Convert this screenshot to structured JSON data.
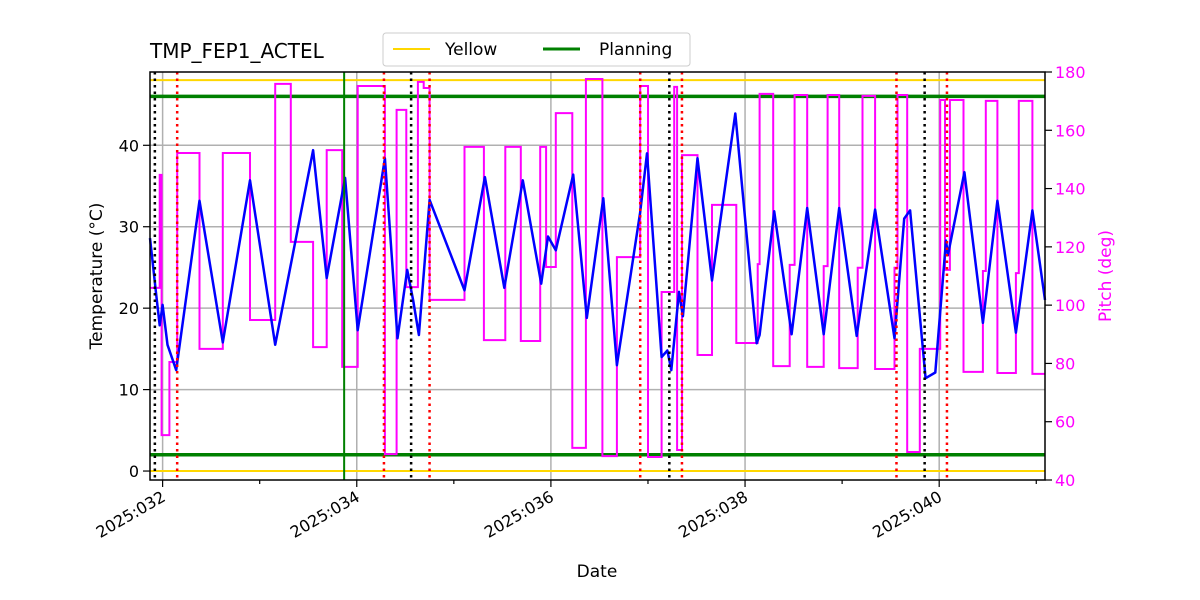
{
  "chart_data": {
    "type": "line",
    "title": "TMP_FEP1_ACTEL",
    "xlabel": "Date",
    "ylabel": "Temperature ($^\\circ$C)",
    "ylabel_display": "Temperature (°C)",
    "y2label": "Pitch (deg)",
    "xlim": [
      31.87,
      41.09
    ],
    "ylim": [
      -1.1,
      49
    ],
    "y2lim": [
      40,
      180
    ],
    "xticks": [
      {
        "value": 32,
        "label": "2025:032"
      },
      {
        "value": 34,
        "label": "2025:034"
      },
      {
        "value": 36,
        "label": "2025:036"
      },
      {
        "value": 38,
        "label": "2025:038"
      },
      {
        "value": 40,
        "label": "2025:040"
      }
    ],
    "yticks": [
      0,
      10,
      20,
      30,
      40
    ],
    "y2ticks": [
      40,
      60,
      80,
      100,
      120,
      140,
      160,
      180
    ],
    "grid": true,
    "legend": {
      "placement": "top-center, above axes",
      "entries": [
        {
          "name": "Yellow",
          "color": "#ffd700"
        },
        {
          "name": "Planning",
          "color": "#008000"
        }
      ]
    },
    "colors": {
      "temperature": "#0000ff",
      "pitch": "#ff00ff",
      "yellow": "#ffd700",
      "planning": "#008000",
      "red_marker": "#ff0000",
      "black_marker": "#000000"
    },
    "limits": {
      "yellow": [
        48,
        0
      ],
      "planning": [
        46,
        2
      ]
    },
    "vlines": {
      "black_dotted": [
        31.92,
        34.56,
        37.22,
        39.85
      ],
      "red_dotted": [
        32.15,
        34.28,
        34.75,
        36.92,
        37.35,
        39.56,
        40.08
      ],
      "green_solid": [
        33.87
      ]
    },
    "series": [
      {
        "axis": "left",
        "color": "#0000ff",
        "points": [
          [
            31.87,
            28.6
          ],
          [
            31.94,
            21
          ],
          [
            31.97,
            17.9
          ],
          [
            32.0,
            20.4
          ],
          [
            32.05,
            15.5
          ],
          [
            32.14,
            12.4
          ],
          [
            32.38,
            33.2
          ],
          [
            32.62,
            15.8
          ],
          [
            32.9,
            35.7
          ],
          [
            33.16,
            15.5
          ],
          [
            33.55,
            39.4
          ],
          [
            33.69,
            23.7
          ],
          [
            33.88,
            36
          ],
          [
            34.01,
            17.3
          ],
          [
            34.29,
            38.4
          ],
          [
            34.42,
            16.3
          ],
          [
            34.52,
            24.7
          ],
          [
            34.58,
            21
          ],
          [
            34.64,
            16.7
          ],
          [
            34.75,
            33.3
          ],
          [
            35.11,
            22.2
          ],
          [
            35.32,
            36.1
          ],
          [
            35.52,
            22.5
          ],
          [
            35.71,
            35.7
          ],
          [
            35.9,
            23
          ],
          [
            35.97,
            28.8
          ],
          [
            36.05,
            27.1
          ],
          [
            36.23,
            36.4
          ],
          [
            36.37,
            18.8
          ],
          [
            36.54,
            33.5
          ],
          [
            36.68,
            13
          ],
          [
            36.92,
            31.8
          ],
          [
            36.99,
            39
          ],
          [
            37.14,
            14
          ],
          [
            37.2,
            14.8
          ],
          [
            37.24,
            12.4
          ],
          [
            37.32,
            22
          ],
          [
            37.36,
            19
          ],
          [
            37.51,
            38.4
          ],
          [
            37.66,
            23.4
          ],
          [
            37.9,
            43.9
          ],
          [
            38.12,
            15.7
          ],
          [
            38.15,
            16.7
          ],
          [
            38.3,
            31.9
          ],
          [
            38.48,
            16.8
          ],
          [
            38.64,
            32.3
          ],
          [
            38.81,
            16.8
          ],
          [
            38.97,
            32.3
          ],
          [
            39.15,
            16.6
          ],
          [
            39.34,
            32.1
          ],
          [
            39.54,
            16.3
          ],
          [
            39.64,
            31
          ],
          [
            39.7,
            32
          ],
          [
            39.86,
            11.4
          ],
          [
            39.96,
            12.1
          ],
          [
            40.07,
            28.3
          ],
          [
            40.09,
            26.5
          ],
          [
            40.26,
            36.7
          ],
          [
            40.45,
            18.2
          ],
          [
            40.6,
            33.2
          ],
          [
            40.79,
            17
          ],
          [
            40.96,
            32
          ],
          [
            41.09,
            21
          ]
        ]
      },
      {
        "axis": "right",
        "color": "#ff00ff",
        "step": "post",
        "end": 41.09,
        "points": [
          [
            31.87,
            105.9
          ],
          [
            31.97,
            144.7
          ],
          [
            31.99,
            55.4
          ],
          [
            32.07,
            80.5
          ],
          [
            32.15,
            152.2
          ],
          [
            32.38,
            85
          ],
          [
            32.62,
            152.2
          ],
          [
            32.9,
            94.9
          ],
          [
            33.16,
            175.9
          ],
          [
            33.32,
            121.7
          ],
          [
            33.55,
            85.6
          ],
          [
            33.69,
            153.2
          ],
          [
            33.85,
            78.8
          ],
          [
            34.01,
            175.2
          ],
          [
            34.29,
            48.9
          ],
          [
            34.41,
            167
          ],
          [
            34.51,
            106.2
          ],
          [
            34.63,
            176.6
          ],
          [
            34.69,
            174.5
          ],
          [
            34.75,
            101.8
          ],
          [
            35.11,
            154.3
          ],
          [
            35.31,
            88
          ],
          [
            35.53,
            154.3
          ],
          [
            35.69,
            87.7
          ],
          [
            35.89,
            154.3
          ],
          [
            35.95,
            113.1
          ],
          [
            36.05,
            165.9
          ],
          [
            36.22,
            51
          ],
          [
            36.36,
            177.6
          ],
          [
            36.53,
            48.2
          ],
          [
            36.68,
            116.5
          ],
          [
            36.92,
            175.2
          ],
          [
            37.0,
            47.9
          ],
          [
            37.14,
            104.5
          ],
          [
            37.27,
            174.9
          ],
          [
            37.3,
            50.3
          ],
          [
            37.35,
            151.5
          ],
          [
            37.51,
            82.9
          ],
          [
            37.66,
            134.4
          ],
          [
            37.91,
            87
          ],
          [
            38.13,
            114.1
          ],
          [
            38.15,
            172.5
          ],
          [
            38.29,
            79.1
          ],
          [
            38.46,
            113.8
          ],
          [
            38.51,
            172.1
          ],
          [
            38.64,
            78.8
          ],
          [
            38.81,
            113.4
          ],
          [
            38.85,
            172.1
          ],
          [
            38.97,
            78.4
          ],
          [
            39.16,
            112.8
          ],
          [
            39.21,
            171.8
          ],
          [
            39.34,
            78.1
          ],
          [
            39.54,
            112.8
          ],
          [
            39.57,
            172.1
          ],
          [
            39.67,
            49.6
          ],
          [
            39.8,
            85
          ],
          [
            40.01,
            170.4
          ],
          [
            40.06,
            112.1
          ],
          [
            40.11,
            170.4
          ],
          [
            40.25,
            77.1
          ],
          [
            40.45,
            111.7
          ],
          [
            40.48,
            170.1
          ],
          [
            40.6,
            76.7
          ],
          [
            40.79,
            111
          ],
          [
            40.82,
            170.1
          ],
          [
            40.96,
            76.4
          ]
        ]
      }
    ]
  }
}
